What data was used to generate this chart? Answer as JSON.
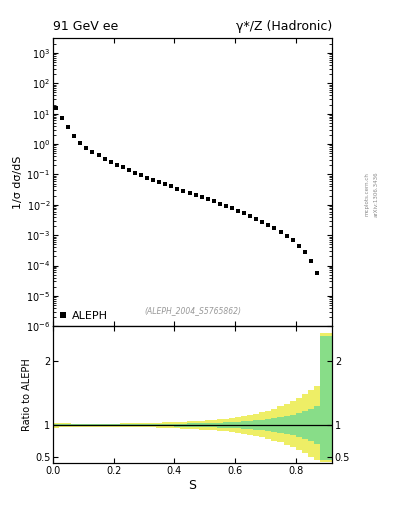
{
  "title_left": "91 GeV ee",
  "title_right": "γ*/Z (Hadronic)",
  "ylabel_main": "1/σ dσ/dS",
  "ylabel_ratio": "Ratio to ALEPH",
  "xlabel": "S",
  "watermark": "(ALEPH_2004_S5765862)",
  "arxiv_text": "arXiv:1306.3436",
  "mcplots_text": "mcplots.cern.ch",
  "data_x": [
    0.01,
    0.03,
    0.05,
    0.07,
    0.09,
    0.11,
    0.13,
    0.15,
    0.17,
    0.19,
    0.21,
    0.23,
    0.25,
    0.27,
    0.29,
    0.31,
    0.33,
    0.35,
    0.37,
    0.39,
    0.41,
    0.43,
    0.45,
    0.47,
    0.49,
    0.51,
    0.53,
    0.55,
    0.57,
    0.59,
    0.61,
    0.63,
    0.65,
    0.67,
    0.69,
    0.71,
    0.73,
    0.75,
    0.77,
    0.79,
    0.81,
    0.83,
    0.85,
    0.87
  ],
  "data_y": [
    15.0,
    7.0,
    3.5,
    1.8,
    1.1,
    0.75,
    0.55,
    0.42,
    0.33,
    0.26,
    0.21,
    0.17,
    0.14,
    0.115,
    0.095,
    0.079,
    0.066,
    0.056,
    0.047,
    0.04,
    0.034,
    0.029,
    0.025,
    0.021,
    0.018,
    0.015,
    0.013,
    0.011,
    0.0092,
    0.0077,
    0.0064,
    0.0053,
    0.0043,
    0.0035,
    0.0028,
    0.0022,
    0.0017,
    0.0013,
    0.00095,
    0.00068,
    0.00045,
    0.00028,
    0.00014,
    5.5e-05
  ],
  "marker_color": "black",
  "marker_style": "s",
  "marker_size": 3.5,
  "ylim_main": [
    1e-06,
    3000
  ],
  "xlim": [
    0.0,
    0.92
  ],
  "ratio_ylim": [
    0.4,
    2.55
  ],
  "ratio_yticks": [
    0.5,
    1.0,
    2.0
  ],
  "band_x_edges": [
    0.0,
    0.02,
    0.04,
    0.06,
    0.08,
    0.1,
    0.12,
    0.14,
    0.16,
    0.18,
    0.2,
    0.22,
    0.24,
    0.26,
    0.28,
    0.3,
    0.32,
    0.34,
    0.36,
    0.38,
    0.4,
    0.42,
    0.44,
    0.46,
    0.48,
    0.5,
    0.52,
    0.54,
    0.56,
    0.58,
    0.6,
    0.62,
    0.64,
    0.66,
    0.68,
    0.7,
    0.72,
    0.74,
    0.76,
    0.78,
    0.8,
    0.82,
    0.84,
    0.86,
    0.88,
    0.92
  ],
  "green_lo": [
    0.98,
    0.985,
    0.987,
    0.988,
    0.989,
    0.989,
    0.989,
    0.989,
    0.988,
    0.988,
    0.987,
    0.987,
    0.986,
    0.985,
    0.984,
    0.983,
    0.982,
    0.981,
    0.98,
    0.979,
    0.977,
    0.976,
    0.974,
    0.972,
    0.97,
    0.967,
    0.964,
    0.961,
    0.957,
    0.952,
    0.947,
    0.941,
    0.934,
    0.926,
    0.917,
    0.906,
    0.893,
    0.878,
    0.86,
    0.839,
    0.814,
    0.784,
    0.748,
    0.7,
    0.45
  ],
  "green_hi": [
    1.02,
    1.015,
    1.013,
    1.012,
    1.011,
    1.011,
    1.011,
    1.011,
    1.012,
    1.012,
    1.013,
    1.013,
    1.014,
    1.015,
    1.016,
    1.017,
    1.018,
    1.019,
    1.02,
    1.021,
    1.023,
    1.024,
    1.026,
    1.028,
    1.03,
    1.033,
    1.036,
    1.039,
    1.043,
    1.048,
    1.053,
    1.059,
    1.066,
    1.074,
    1.083,
    1.094,
    1.107,
    1.122,
    1.14,
    1.161,
    1.186,
    1.216,
    1.252,
    1.3,
    2.4
  ],
  "yellow_lo": [
    0.96,
    0.97,
    0.974,
    0.976,
    0.977,
    0.978,
    0.978,
    0.978,
    0.977,
    0.976,
    0.975,
    0.974,
    0.972,
    0.97,
    0.968,
    0.966,
    0.963,
    0.96,
    0.957,
    0.954,
    0.95,
    0.946,
    0.942,
    0.937,
    0.931,
    0.925,
    0.918,
    0.91,
    0.9,
    0.889,
    0.877,
    0.863,
    0.847,
    0.829,
    0.808,
    0.785,
    0.758,
    0.728,
    0.694,
    0.655,
    0.61,
    0.559,
    0.5,
    0.45,
    0.42
  ],
  "yellow_hi": [
    1.04,
    1.03,
    1.026,
    1.024,
    1.023,
    1.022,
    1.022,
    1.022,
    1.023,
    1.024,
    1.025,
    1.026,
    1.028,
    1.03,
    1.032,
    1.034,
    1.037,
    1.04,
    1.043,
    1.046,
    1.05,
    1.054,
    1.058,
    1.063,
    1.069,
    1.075,
    1.082,
    1.09,
    1.1,
    1.111,
    1.124,
    1.139,
    1.157,
    1.177,
    1.2,
    1.226,
    1.257,
    1.292,
    1.332,
    1.378,
    1.43,
    1.49,
    1.55,
    1.62,
    2.45
  ],
  "green_color": "#88dd88",
  "yellow_color": "#eeee66",
  "legend_label": "ALEPH"
}
